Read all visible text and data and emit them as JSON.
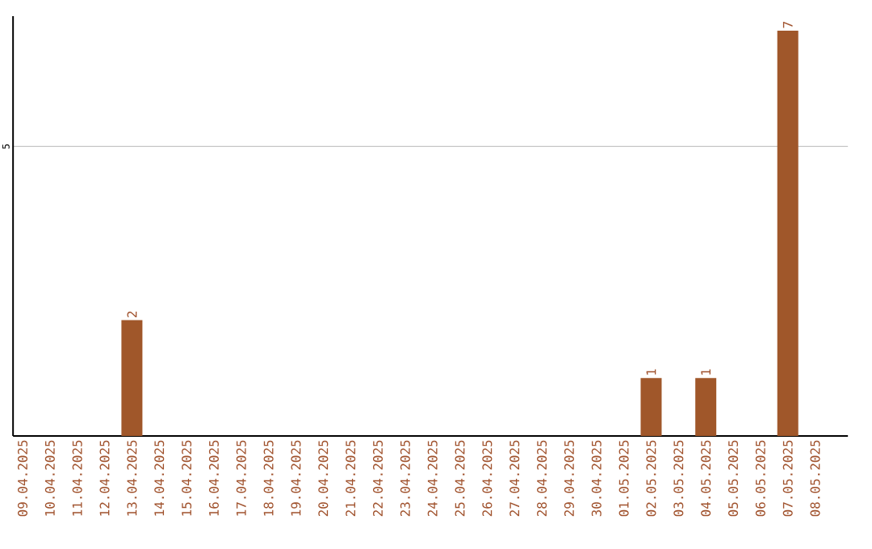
{
  "chart_data": {
    "type": "bar",
    "categories": [
      "09.04.2025",
      "10.04.2025",
      "11.04.2025",
      "12.04.2025",
      "13.04.2025",
      "14.04.2025",
      "15.04.2025",
      "16.04.2025",
      "17.04.2025",
      "18.04.2025",
      "19.04.2025",
      "20.04.2025",
      "21.04.2025",
      "22.04.2025",
      "23.04.2025",
      "24.04.2025",
      "25.04.2025",
      "26.04.2025",
      "27.04.2025",
      "28.04.2025",
      "29.04.2025",
      "30.04.2025",
      "01.05.2025",
      "02.05.2025",
      "03.05.2025",
      "04.05.2025",
      "05.05.2025",
      "06.05.2025",
      "07.05.2025",
      "08.05.2025"
    ],
    "values": [
      0,
      0,
      0,
      0,
      2,
      0,
      0,
      0,
      0,
      0,
      0,
      0,
      0,
      0,
      0,
      0,
      0,
      0,
      0,
      0,
      0,
      0,
      0,
      1,
      0,
      1,
      0,
      0,
      7,
      0
    ],
    "value_labels": [
      null,
      null,
      null,
      null,
      "2",
      null,
      null,
      null,
      null,
      null,
      null,
      null,
      null,
      null,
      null,
      null,
      null,
      null,
      null,
      null,
      null,
      null,
      null,
      "1",
      null,
      "1",
      null,
      null,
      "7",
      null
    ],
    "color": "#a0572a",
    "ylim": [
      0,
      7.25
    ],
    "yticks": [
      5
    ],
    "grid": "y"
  }
}
